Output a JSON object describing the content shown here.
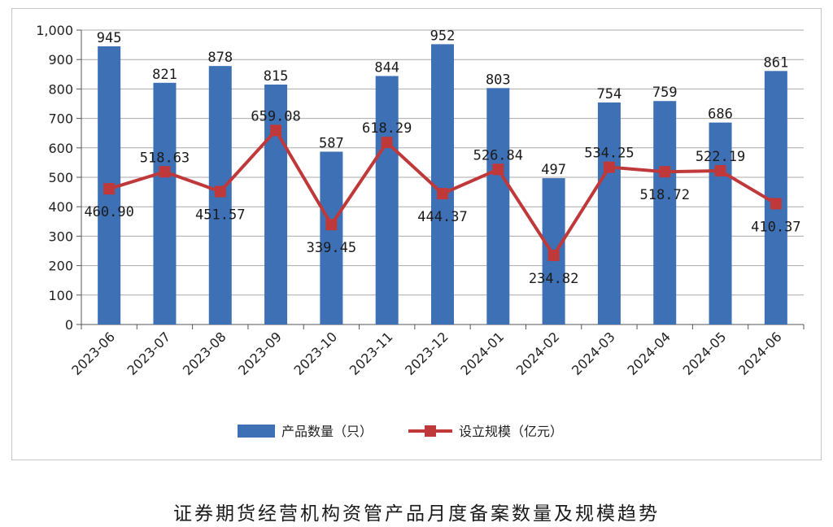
{
  "chart_data": {
    "type": "bar",
    "categories": [
      "2023-06",
      "2023-07",
      "2023-08",
      "2023-09",
      "2023-10",
      "2023-11",
      "2023-12",
      "2024-01",
      "2024-02",
      "2024-03",
      "2024-04",
      "2024-05",
      "2024-06"
    ],
    "series": [
      {
        "name": "产品数量（只）",
        "type": "bar",
        "color": "#3d70b5",
        "values": [
          945,
          821,
          878,
          815,
          587,
          844,
          952,
          803,
          497,
          754,
          759,
          686,
          861
        ],
        "labels": [
          "945",
          "821",
          "878",
          "815",
          "587",
          "844",
          "952",
          "803",
          "497",
          "754",
          "759",
          "686",
          "861"
        ]
      },
      {
        "name": "设立规模（亿元）",
        "type": "line",
        "color": "#c0393a",
        "values": [
          460.9,
          518.63,
          451.57,
          659.08,
          339.45,
          618.29,
          444.37,
          526.84,
          234.82,
          534.25,
          518.72,
          522.19,
          410.37
        ],
        "labels": [
          "460.90",
          "518.63",
          "451.57",
          "659.08",
          "339.45",
          "618.29",
          "444.37",
          "526.84",
          "234.82",
          "534.25",
          "518.72",
          "522.19",
          "410.37"
        ]
      }
    ],
    "title": "证券期货经营机构资管产品月度备案数量及规模趋势",
    "xlabel": "",
    "ylabel": "",
    "ylim": [
      0,
      1000
    ],
    "yticks": [
      0,
      100,
      200,
      300,
      400,
      500,
      600,
      700,
      800,
      900,
      1000
    ],
    "ytick_labels": [
      "0",
      "100",
      "200",
      "300",
      "400",
      "500",
      "600",
      "700",
      "800",
      "900",
      "1,000"
    ],
    "grid": true,
    "legend": "bottom"
  }
}
